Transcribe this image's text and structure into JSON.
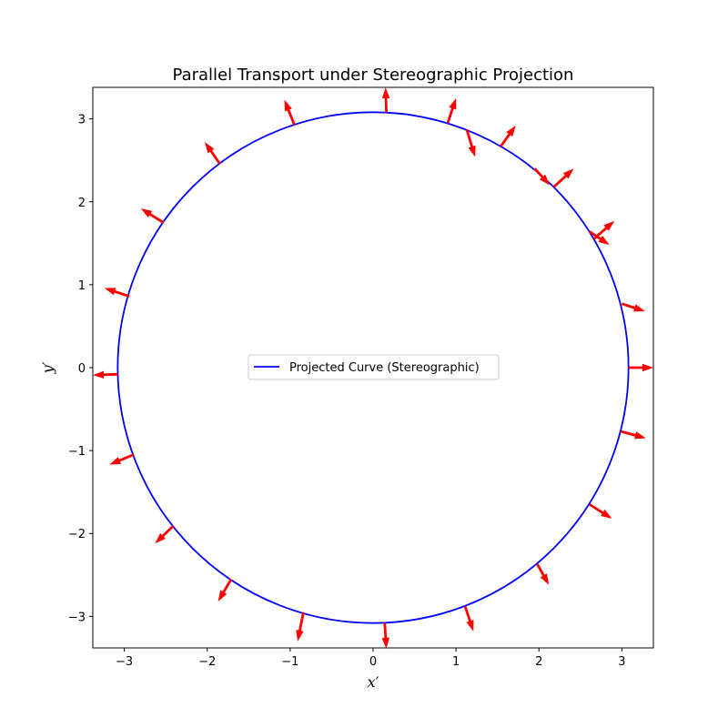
{
  "chart_data": {
    "type": "line",
    "title": "Parallel Transport under Stereographic Projection",
    "xlabel": "x′",
    "ylabel": "y′",
    "xlim": [
      -3.38,
      3.38
    ],
    "ylim": [
      -3.38,
      3.38
    ],
    "xticks": [
      -3,
      -2,
      -1,
      0,
      1,
      2,
      3
    ],
    "yticks": [
      -3,
      -2,
      -1,
      0,
      1,
      2,
      3
    ],
    "xtick_labels": [
      "−3",
      "−2",
      "−1",
      "0",
      "1",
      "2",
      "3"
    ],
    "ytick_labels": [
      "−3",
      "−2",
      "−1",
      "0",
      "1",
      "2",
      "3"
    ],
    "grid": false,
    "legend": {
      "position": "center",
      "entries": [
        "Projected Curve (Stereographic)"
      ]
    },
    "series": [
      {
        "name": "Projected Curve (Stereographic)",
        "kind": "circle",
        "center": [
          0,
          0
        ],
        "radius": 3.08,
        "color": "#0000ff"
      }
    ],
    "vectors": {
      "color": "#ff0000",
      "arrows": [
        {
          "x": 3.08,
          "y": 0.0,
          "u": 0.3,
          "v": 0.0
        },
        {
          "x": 3.0,
          "y": 0.77,
          "u": 0.28,
          "v": -0.09
        },
        {
          "x": 2.66,
          "y": 1.55,
          "u": 0.25,
          "v": 0.22
        },
        {
          "x": 2.61,
          "y": 1.64,
          "u": 0.24,
          "v": -0.16
        },
        {
          "x": 2.18,
          "y": 2.18,
          "u": 0.24,
          "v": 0.22
        },
        {
          "x": 1.95,
          "y": 2.4,
          "u": 0.18,
          "v": -0.2
        },
        {
          "x": 1.54,
          "y": 2.67,
          "u": 0.18,
          "v": 0.25
        },
        {
          "x": 1.13,
          "y": 2.87,
          "u": 0.1,
          "v": -0.33
        },
        {
          "x": 0.9,
          "y": 2.95,
          "u": 0.1,
          "v": 0.3
        },
        {
          "x": 0.16,
          "y": 3.08,
          "u": -0.01,
          "v": 0.3
        },
        {
          "x": -0.95,
          "y": 2.93,
          "u": -0.12,
          "v": 0.3
        },
        {
          "x": -1.85,
          "y": 2.46,
          "u": -0.18,
          "v": 0.26
        },
        {
          "x": -2.53,
          "y": 1.75,
          "u": -0.27,
          "v": 0.17
        },
        {
          "x": -2.94,
          "y": 0.86,
          "u": -0.3,
          "v": 0.1
        },
        {
          "x": -3.08,
          "y": -0.08,
          "u": -0.3,
          "v": -0.01
        },
        {
          "x": -2.89,
          "y": -1.05,
          "u": -0.29,
          "v": -0.12
        },
        {
          "x": -2.41,
          "y": -1.91,
          "u": -0.22,
          "v": -0.21
        },
        {
          "x": -1.71,
          "y": -2.55,
          "u": -0.16,
          "v": -0.27
        },
        {
          "x": -0.84,
          "y": -2.95,
          "u": -0.07,
          "v": -0.35
        },
        {
          "x": 0.14,
          "y": -3.08,
          "u": 0.02,
          "v": -0.31
        },
        {
          "x": 1.11,
          "y": -2.88,
          "u": 0.1,
          "v": -0.3
        },
        {
          "x": 1.98,
          "y": -2.37,
          "u": 0.14,
          "v": -0.25
        },
        {
          "x": 2.61,
          "y": -1.65,
          "u": 0.27,
          "v": -0.17
        },
        {
          "x": 2.99,
          "y": -0.77,
          "u": 0.3,
          "v": -0.08
        }
      ]
    }
  }
}
